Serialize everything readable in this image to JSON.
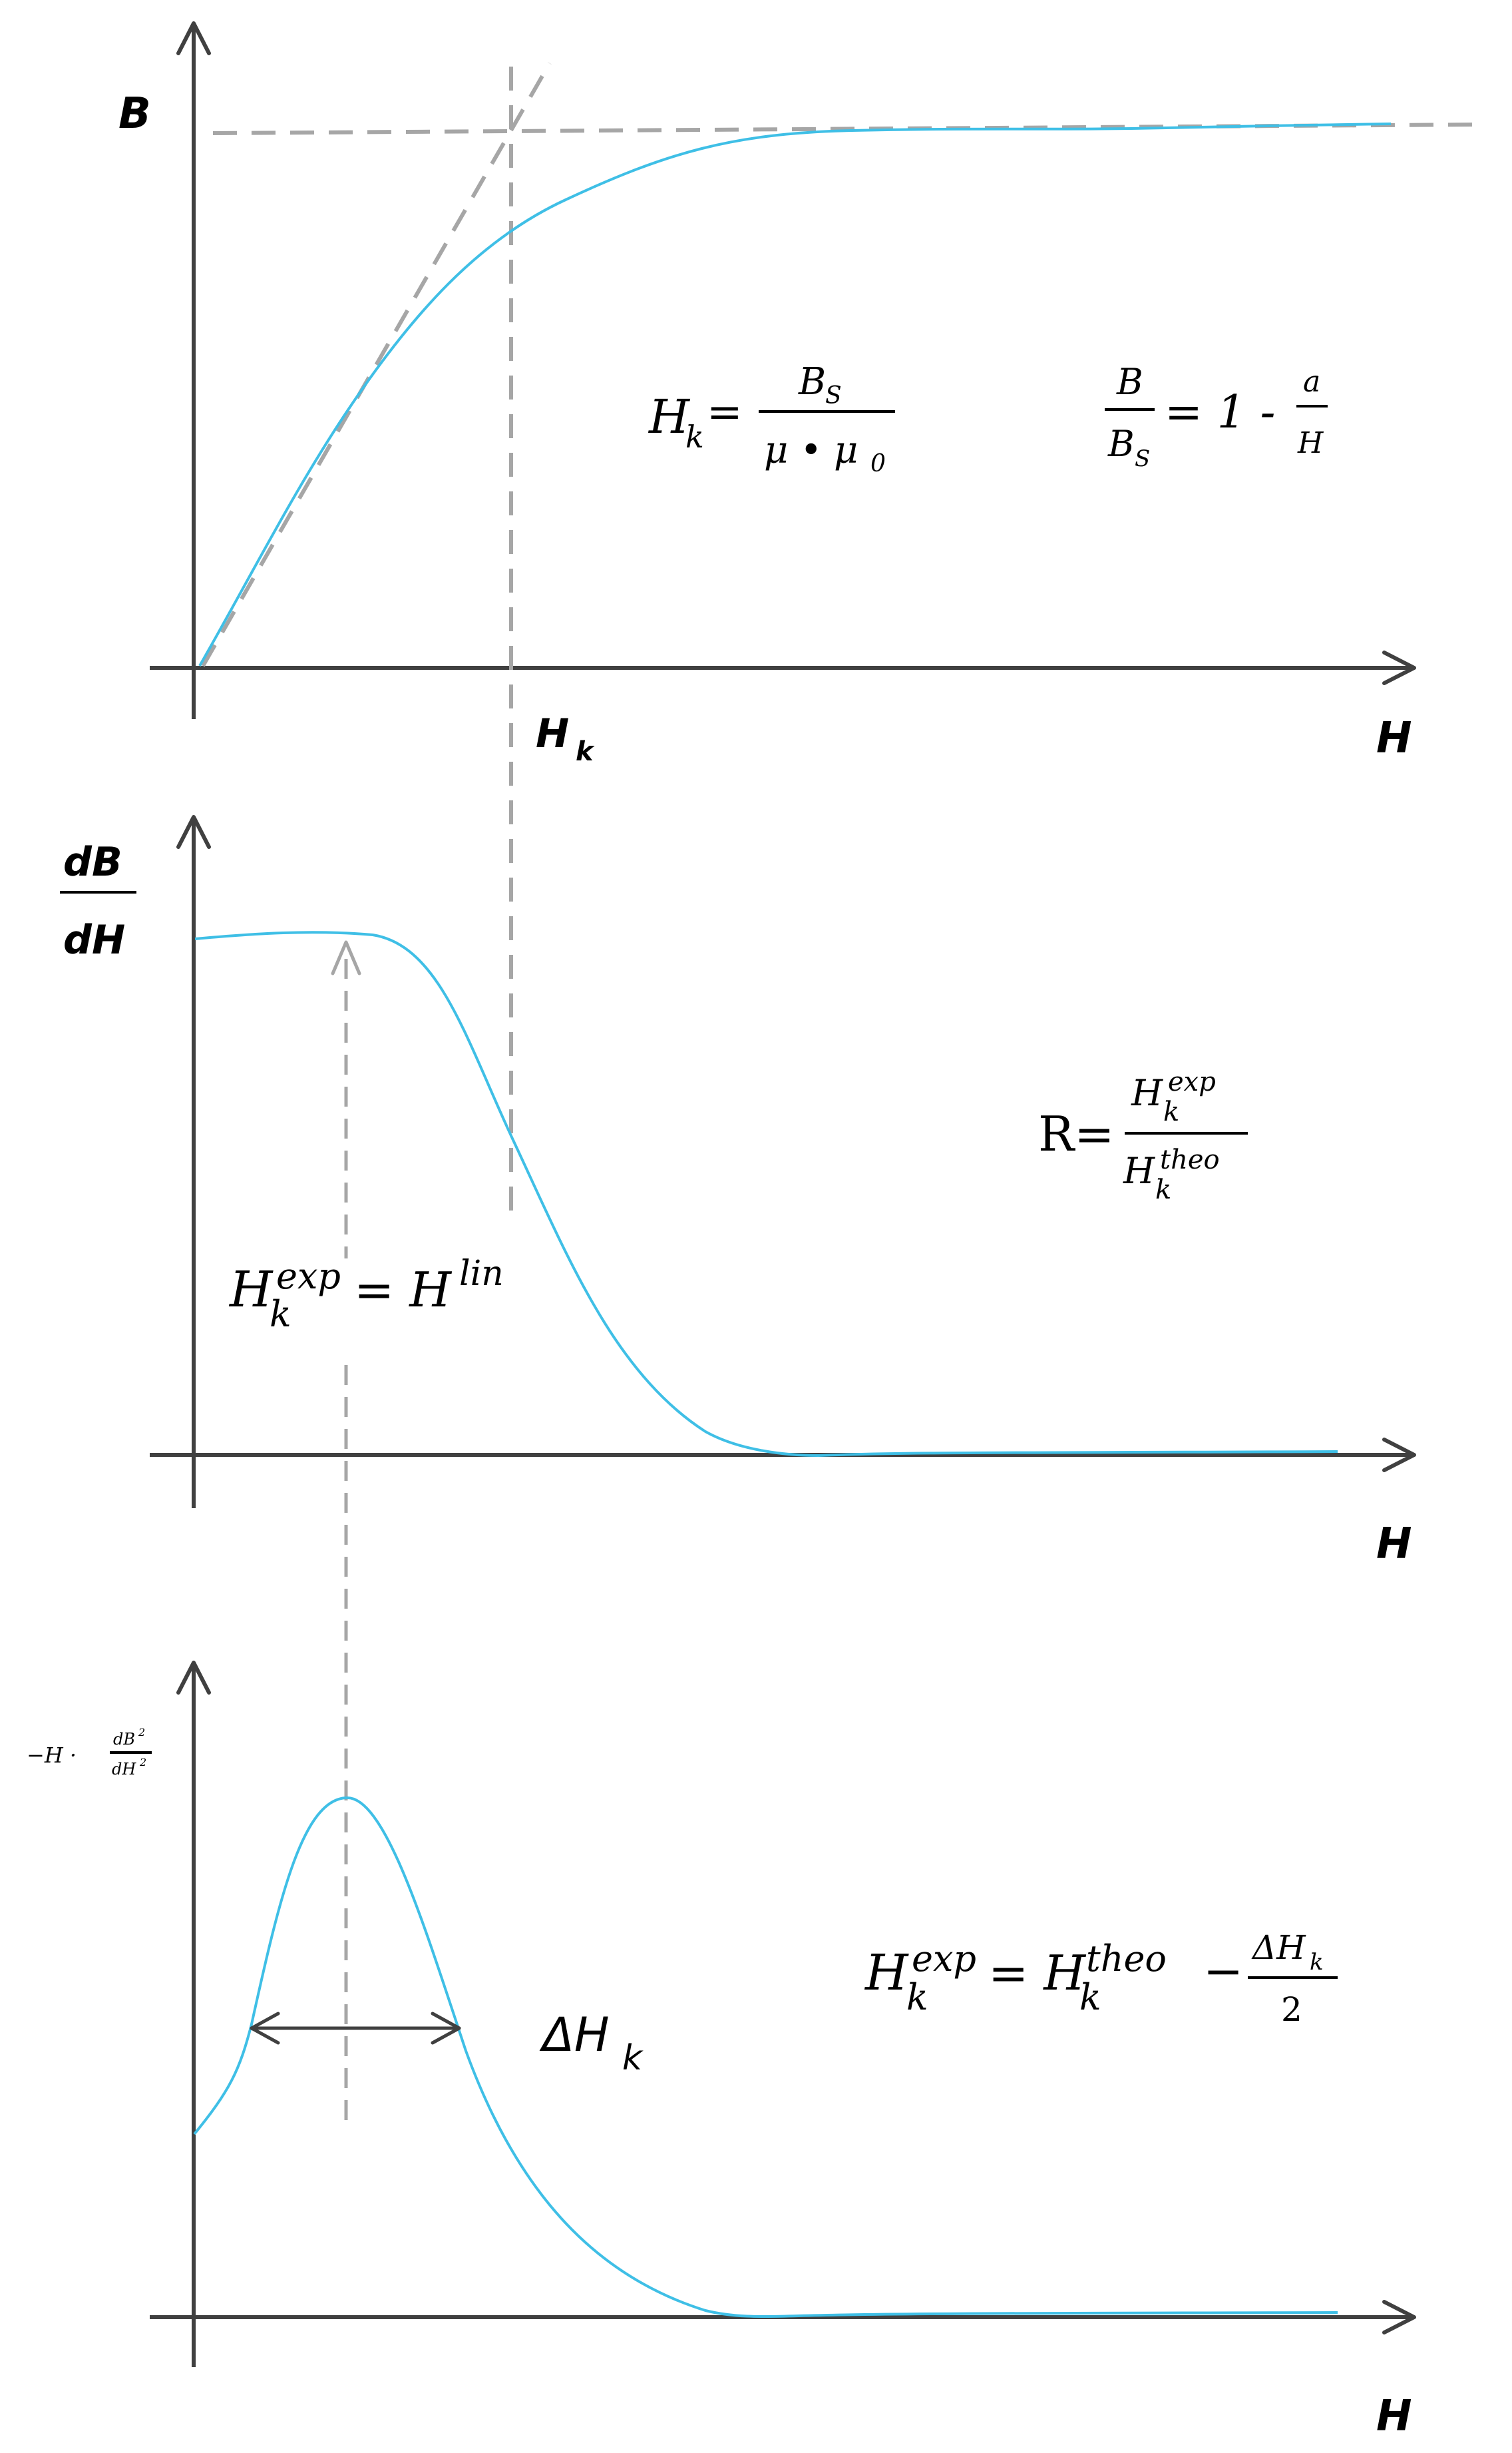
{
  "panels": {
    "top": {
      "y_label": "B",
      "x_label": "H",
      "hk_label": {
        "base": "H",
        "sub": "k"
      },
      "formula_hk": {
        "lhs": "H",
        "lhs_sub": "k",
        "eq": "=",
        "num": "B",
        "num_sub": "S",
        "den": "μ • μ",
        "den_sub": "0"
      },
      "formula_ratio": {
        "num": "B",
        "den": "B",
        "den_sub": "S",
        "eq": "= 1 -",
        "rnum": "a",
        "rden": "H"
      }
    },
    "middle": {
      "y_label_num": "dB",
      "y_label_den": "dH",
      "x_label": "H",
      "formula_r": {
        "lhs": "R=",
        "num": "H",
        "num_sub": "k",
        "num_sup": "exp",
        "den": "H",
        "den_sub": "k",
        "den_sup": "theo"
      },
      "formula_hexp": {
        "lhs": "H",
        "lhs_sub": "k",
        "lhs_sup": "exp",
        "eq": "= H",
        "rhs_sup": "lin"
      }
    },
    "bottom": {
      "y_label": {
        "prefix": "−H ·",
        "num": "dB",
        "num_sup": "2",
        "den": "dH",
        "den_sup": "2"
      },
      "x_label": "H",
      "delta_label": {
        "base": "ΔH",
        "sub": "k"
      },
      "formula": {
        "lhs": "H",
        "lhs_sub": "k",
        "lhs_sup": "exp",
        "eq": "= H",
        "rhs_sub": "k",
        "rhs_sup": "theo",
        "minus": "−",
        "num": "ΔH",
        "num_sub": "k",
        "den": "2"
      }
    }
  },
  "colors": {
    "curve": "#3fbfe6",
    "axis": "#404040",
    "guide": "#a6a6a6"
  }
}
